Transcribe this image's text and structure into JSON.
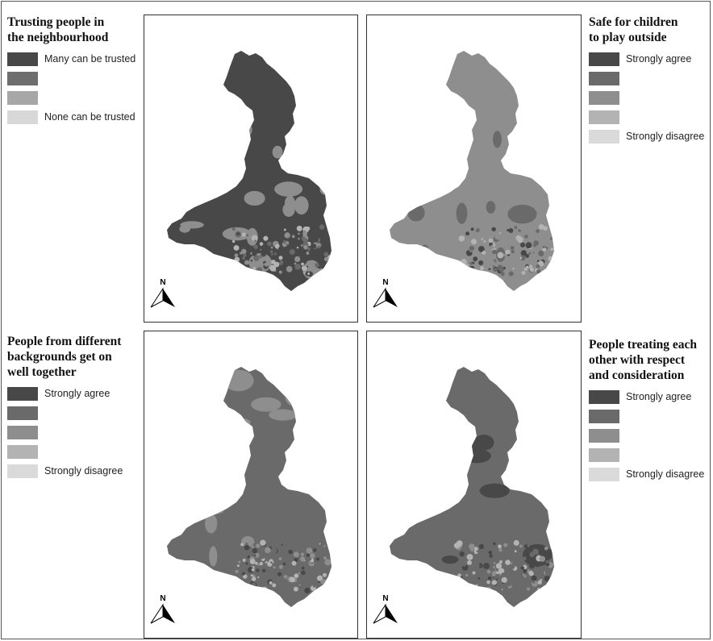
{
  "colors": {
    "c1": "#484848",
    "c2": "#6a6a6a",
    "c3": "#8e8e8e",
    "c4": "#b3b3b3",
    "c5": "#dadada"
  },
  "north_label": "N",
  "panels": [
    {
      "id": "trust",
      "title": "Trusting people in\nthe neighbourhood",
      "base_class": "c1",
      "blob_class": "c3",
      "legend": [
        {
          "label": "Many can be trusted",
          "color": "#484848"
        },
        {
          "label": "",
          "color": "#6e6e6e"
        },
        {
          "label": "",
          "color": "#a7a7a7"
        },
        {
          "label": "None can be trusted",
          "color": "#d8d8d8"
        }
      ]
    },
    {
      "id": "children",
      "title": "Safe for children\nto play outside",
      "base_class": "c3",
      "blob_class": "c2",
      "legend": [
        {
          "label": "Strongly agree",
          "color": "#484848"
        },
        {
          "label": "",
          "color": "#6a6a6a"
        },
        {
          "label": "",
          "color": "#8e8e8e"
        },
        {
          "label": "",
          "color": "#b3b3b3"
        },
        {
          "label": "Strongly disagree",
          "color": "#dadada"
        }
      ]
    },
    {
      "id": "backgrounds",
      "title": "People from different\nbackgrounds get on\nwell together",
      "base_class": "c2",
      "blob_class": "c3",
      "legend": [
        {
          "label": "Strongly agree",
          "color": "#484848"
        },
        {
          "label": "",
          "color": "#6a6a6a"
        },
        {
          "label": "",
          "color": "#8e8e8e"
        },
        {
          "label": "",
          "color": "#b3b3b3"
        },
        {
          "label": "Strongly disagree",
          "color": "#dadada"
        }
      ]
    },
    {
      "id": "respect",
      "title": "People treating each\nother with respect\nand consideration",
      "base_class": "c2",
      "blob_class": "c1",
      "legend": [
        {
          "label": "Strongly agree",
          "color": "#484848"
        },
        {
          "label": "",
          "color": "#6a6a6a"
        },
        {
          "label": "",
          "color": "#8e8e8e"
        },
        {
          "label": "",
          "color": "#b3b3b3"
        },
        {
          "label": "Strongly disagree",
          "color": "#dadada"
        }
      ]
    }
  ]
}
